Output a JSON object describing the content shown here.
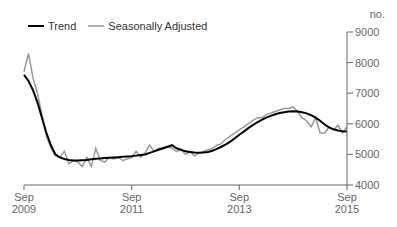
{
  "chart_data": {
    "type": "line",
    "ylabel": "no.",
    "categories": [
      "Sep\n2009",
      null,
      null,
      null,
      null,
      null,
      null,
      null,
      null,
      null,
      null,
      null,
      null,
      null,
      null,
      null,
      null,
      null,
      null,
      null,
      null,
      null,
      null,
      null,
      "Sep\n2011",
      null,
      null,
      null,
      null,
      null,
      null,
      null,
      null,
      null,
      null,
      null,
      null,
      null,
      null,
      null,
      null,
      null,
      null,
      null,
      null,
      null,
      null,
      null,
      "Sep\n2013",
      null,
      null,
      null,
      null,
      null,
      null,
      null,
      null,
      null,
      null,
      null,
      null,
      null,
      null,
      null,
      null,
      null,
      null,
      null,
      null,
      null,
      null,
      null,
      "Sep\n2015"
    ],
    "series": [
      {
        "name": "Trend",
        "color": "#000000",
        "values": [
          7600,
          7400,
          7100,
          6700,
          6200,
          5700,
          5300,
          5000,
          4900,
          4850,
          4820,
          4800,
          4800,
          4810,
          4820,
          4840,
          4860,
          4870,
          4880,
          4890,
          4900,
          4910,
          4920,
          4930,
          4940,
          4960,
          4980,
          5000,
          5050,
          5100,
          5150,
          5200,
          5250,
          5300,
          5200,
          5150,
          5100,
          5080,
          5060,
          5050,
          5060,
          5080,
          5120,
          5180,
          5250,
          5330,
          5420,
          5530,
          5640,
          5750,
          5860,
          5960,
          6050,
          6130,
          6200,
          6260,
          6310,
          6350,
          6380,
          6400,
          6410,
          6400,
          6380,
          6340,
          6280,
          6200,
          6100,
          5980,
          5880,
          5820,
          5780,
          5760,
          5750
        ]
      },
      {
        "name": "Seasonally Adjusted",
        "color": "#999999",
        "values": [
          7700,
          8300,
          7500,
          7000,
          6300,
          5600,
          5200,
          4950,
          4900,
          5100,
          4700,
          4800,
          4750,
          4600,
          4900,
          4600,
          5200,
          4800,
          4750,
          4900,
          4850,
          4900,
          4800,
          4850,
          4900,
          5100,
          4900,
          5050,
          5300,
          5100,
          5200,
          5200,
          5250,
          5200,
          5100,
          5150,
          5000,
          5100,
          4950,
          5050,
          5100,
          5150,
          5200,
          5300,
          5350,
          5500,
          5600,
          5700,
          5800,
          5900,
          6000,
          6100,
          6200,
          6200,
          6300,
          6350,
          6400,
          6450,
          6500,
          6500,
          6550,
          6400,
          6200,
          6100,
          5900,
          6200,
          5700,
          5700,
          5900,
          5800,
          5950,
          5700,
          5900
        ]
      }
    ],
    "ylim": [
      4000,
      9000
    ],
    "yticks": [
      4000,
      5000,
      6000,
      7000,
      8000,
      9000
    ],
    "grid": false,
    "legend": "upper left"
  }
}
